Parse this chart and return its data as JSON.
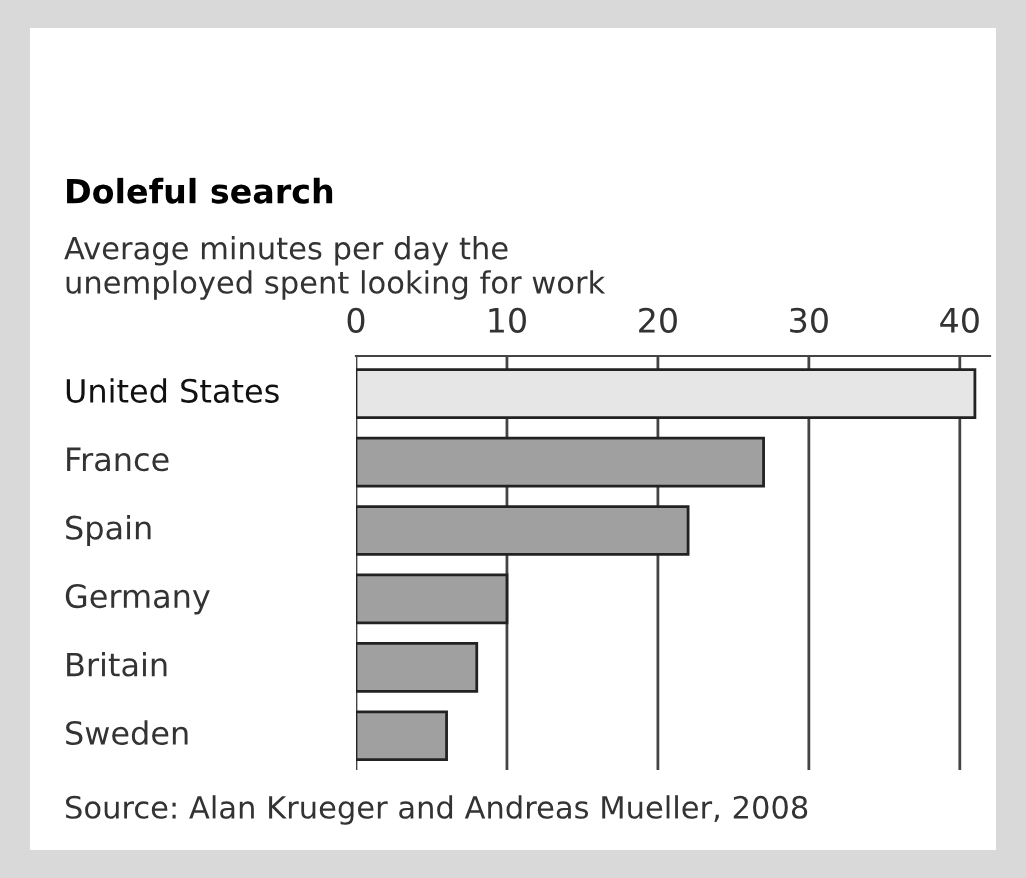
{
  "chart_data": {
    "type": "bar",
    "orientation": "horizontal",
    "title": "Doleful search",
    "subtitle": "Average minutes per day the\nunemployed spent looking for work",
    "categories": [
      "United States",
      "France",
      "Spain",
      "Germany",
      "Britain",
      "Sweden"
    ],
    "values": [
      41,
      27,
      22,
      10,
      8,
      6
    ],
    "colors": [
      "#e6e6e6",
      "#a0a0a0",
      "#a0a0a0",
      "#a0a0a0",
      "#a0a0a0",
      "#a0a0a0"
    ],
    "xlim": [
      0,
      42
    ],
    "xticks": [
      0,
      10,
      20,
      30,
      40
    ],
    "grid": "x",
    "annotations": [
      "Source: Alan Krueger and Andreas Mueller, 2008"
    ]
  }
}
